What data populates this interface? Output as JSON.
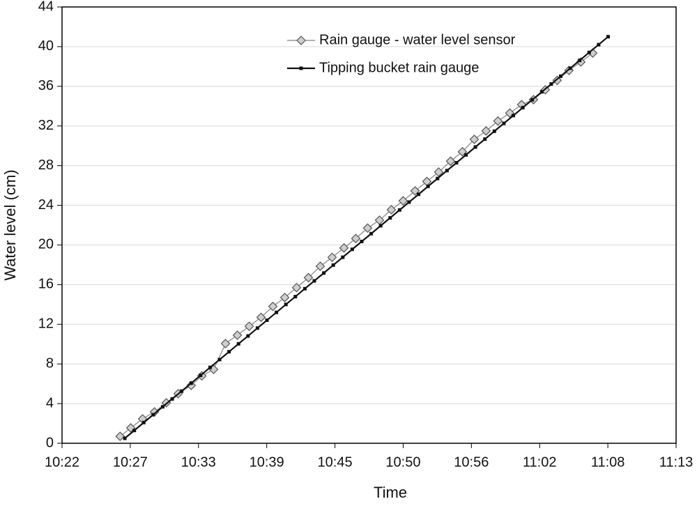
{
  "chart_data": {
    "type": "line",
    "xlabel": "Time",
    "ylabel": "Water level (cm)",
    "xlim": [
      622,
      673.84
    ],
    "xticks": [
      {
        "value": 622,
        "label": "10:22"
      },
      {
        "value": 627.76,
        "label": "10:27"
      },
      {
        "value": 633.52,
        "label": "10:33"
      },
      {
        "value": 639.28,
        "label": "10:39"
      },
      {
        "value": 645.04,
        "label": "10:45"
      },
      {
        "value": 650.8,
        "label": "10:50"
      },
      {
        "value": 656.56,
        "label": "10:56"
      },
      {
        "value": 662.32,
        "label": "11:02"
      },
      {
        "value": 668.08,
        "label": "11:08"
      },
      {
        "value": 673.84,
        "label": "11:13"
      }
    ],
    "ylim": [
      0,
      44
    ],
    "yticks": [
      0,
      4,
      8,
      12,
      16,
      20,
      24,
      28,
      32,
      36,
      40,
      44
    ],
    "grid": true,
    "legend": "upper center",
    "series": [
      {
        "name": "Rain gauge - water level sensor",
        "color": "#999999",
        "marker": "diamond",
        "x": [
          626.9,
          627.8,
          628.8,
          629.8,
          630.8,
          631.8,
          632.9,
          633.8,
          634.8,
          635.8,
          636.8,
          637.8,
          638.8,
          639.8,
          640.8,
          641.8,
          642.8,
          643.8,
          644.8,
          645.8,
          646.8,
          647.8,
          648.8,
          649.8,
          650.8,
          651.8,
          652.8,
          653.8,
          654.8,
          655.8,
          656.8,
          657.8,
          658.8,
          659.8,
          660.8,
          661.8,
          662.8,
          663.8,
          664.8,
          665.8,
          666.8
        ],
        "values": [
          0.7,
          1.55,
          2.46,
          3.16,
          4.08,
          5.0,
          5.83,
          6.8,
          7.45,
          10.05,
          10.9,
          11.8,
          12.7,
          13.8,
          14.7,
          15.7,
          16.7,
          17.85,
          18.75,
          19.7,
          20.65,
          21.7,
          22.5,
          23.55,
          24.45,
          25.45,
          26.4,
          27.35,
          28.45,
          29.4,
          30.65,
          31.5,
          32.5,
          33.3,
          34.15,
          34.65,
          35.65,
          36.6,
          37.6,
          38.45,
          39.35
        ]
      },
      {
        "name": "Tipping bucket rain gauge",
        "color": "#111111",
        "marker": "square",
        "x": [
          627.3,
          628.1,
          628.9,
          629.7,
          630.5,
          631.3,
          632.1,
          632.9,
          633.7,
          634.5,
          635.3,
          636.1,
          636.9,
          637.7,
          638.5,
          639.3,
          640.1,
          640.9,
          641.7,
          642.5,
          643.3,
          644.1,
          644.9,
          645.7,
          646.5,
          647.3,
          648.1,
          648.9,
          649.7,
          650.5,
          651.3,
          652.1,
          652.9,
          653.7,
          654.5,
          655.3,
          656.1,
          656.9,
          657.7,
          658.5,
          659.3,
          660.1,
          660.9,
          661.7,
          662.5,
          663.3,
          664.1,
          664.9,
          665.7,
          666.5,
          667.3,
          668.1
        ],
        "values": [
          0.5,
          1.29,
          2.09,
          2.88,
          3.68,
          4.47,
          5.26,
          6.06,
          6.85,
          7.65,
          8.44,
          9.23,
          10.03,
          10.82,
          11.62,
          12.41,
          13.2,
          14.0,
          14.79,
          15.59,
          16.38,
          17.17,
          17.97,
          18.76,
          19.56,
          20.35,
          21.14,
          21.94,
          22.73,
          23.53,
          24.32,
          25.11,
          25.91,
          26.7,
          27.5,
          28.29,
          29.08,
          29.88,
          30.67,
          31.47,
          32.26,
          33.05,
          33.85,
          34.64,
          35.44,
          36.23,
          37.02,
          37.82,
          38.61,
          39.41,
          40.2,
          41.0
        ]
      }
    ]
  }
}
